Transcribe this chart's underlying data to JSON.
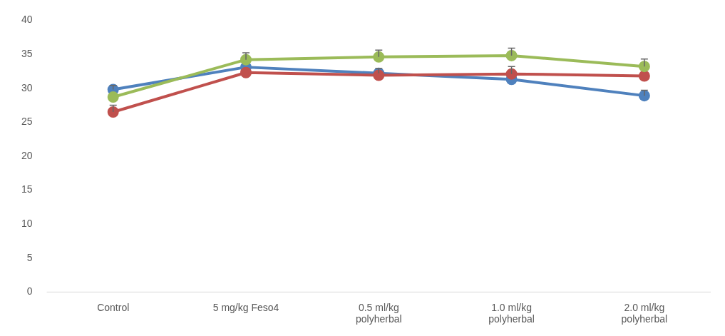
{
  "chart_data": {
    "type": "line",
    "categories": [
      "Control",
      "5 mg/kg Feso4",
      "0.5 ml/kg polyherbal",
      "1.0 ml/kg polyherbal",
      "2.0 ml/kg polyherbal"
    ],
    "series": [
      {
        "color": "#4f81bd",
        "values": [
          29.8,
          33.1,
          32.2,
          31.3,
          28.9
        ],
        "errors": [
          [
            29.8,
            30.4
          ],
          null,
          [
            32.2,
            32.9
          ],
          null,
          [
            28.9,
            29.7
          ]
        ]
      },
      {
        "color": "#c0504d",
        "values": [
          26.5,
          32.3,
          31.9,
          32.1,
          31.8
        ],
        "errors": [
          [
            26.5,
            27.5
          ],
          null,
          null,
          [
            32.1,
            33.2
          ],
          null
        ]
      },
      {
        "color": "#9bbb59",
        "values": [
          28.7,
          34.2,
          34.6,
          34.8,
          33.2
        ],
        "errors": [
          null,
          [
            34.2,
            35.2
          ],
          [
            34.6,
            35.6
          ],
          [
            34.8,
            35.9
          ],
          [
            33.2,
            34.3
          ]
        ]
      }
    ],
    "ylim": [
      0,
      40
    ],
    "yticks": [
      0,
      5,
      10,
      15,
      20,
      25,
      30,
      35,
      40
    ],
    "grid": false,
    "legend": false,
    "marker": "circle",
    "line_style": "solid"
  }
}
